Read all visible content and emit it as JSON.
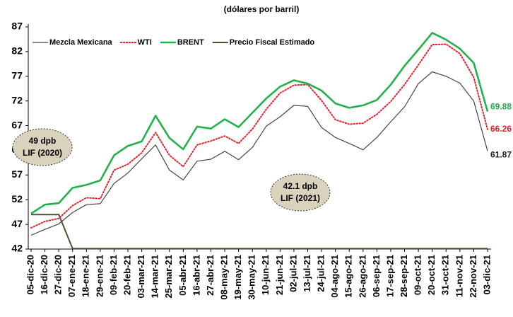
{
  "chart_data": {
    "type": "line",
    "subtitle": "(dólares por barril)",
    "categories": [
      "05-dic-20",
      "16-dic-20",
      "27-dic-20",
      "07-ene-21",
      "18-ene-21",
      "29-ene-21",
      "09-feb-21",
      "20-feb-21",
      "03-mar-21",
      "14-mar-21",
      "25-mar-21",
      "05-abr-21",
      "16-abr-21",
      "27-abr-21",
      "08-may-21",
      "19-may-21",
      "30-may-21",
      "10-jun-21",
      "21-jun-21",
      "02-jul-21",
      "13-jul-21",
      "24-jul-21",
      "04-ago-21",
      "15-ago-21",
      "26-ago-21",
      "06-sep-21",
      "17-sep-21",
      "28-sep-21",
      "09-oct-21",
      "20-oct-21",
      "31-oct-21",
      "11-nov-21",
      "22-nov-21",
      "03-dic-21"
    ],
    "series": [
      {
        "name": "Mezcla Mexicana",
        "color": "#444444",
        "style": "solid",
        "width": 1.2,
        "values": [
          44.8,
          46.0,
          47.1,
          49.4,
          51.0,
          51.2,
          55.3,
          57.4,
          60.3,
          63.1,
          58.0,
          56.0,
          59.8,
          60.2,
          61.8,
          60.1,
          62.6,
          66.9,
          68.8,
          71.1,
          70.9,
          66.6,
          64.6,
          63.4,
          62.1,
          64.6,
          67.8,
          70.8,
          75.5,
          77.9,
          77.0,
          75.6,
          72.0,
          61.87
        ]
      },
      {
        "name": "WTI",
        "color": "#e8202a",
        "style": "dotted",
        "width": 2,
        "values": [
          46.3,
          47.6,
          48.2,
          50.8,
          52.4,
          52.2,
          58.0,
          59.2,
          61.5,
          65.6,
          61.0,
          58.7,
          63.1,
          63.9,
          64.9,
          63.4,
          66.3,
          70.3,
          73.6,
          75.2,
          75.3,
          72.1,
          68.2,
          67.3,
          67.5,
          69.3,
          71.9,
          75.3,
          79.3,
          83.4,
          83.5,
          81.6,
          76.8,
          66.26
        ]
      },
      {
        "name": "BRENT",
        "color": "#22b24c",
        "style": "solid",
        "width": 2.6,
        "values": [
          49.2,
          51.0,
          51.3,
          54.4,
          55.0,
          55.9,
          61.0,
          62.9,
          63.8,
          69.0,
          64.5,
          62.2,
          66.8,
          66.4,
          68.3,
          66.7,
          69.6,
          72.5,
          74.9,
          76.2,
          75.5,
          74.1,
          71.5,
          70.6,
          71.1,
          72.2,
          75.3,
          79.1,
          82.4,
          85.8,
          84.4,
          82.6,
          79.7,
          69.88
        ]
      },
      {
        "name": "Precio Fiscal Estimado",
        "color": "#5a4a32",
        "style": "solid",
        "width": 2,
        "values": [
          49,
          49,
          49,
          42.1,
          42.1,
          42.1,
          42.1,
          42.1,
          42.1,
          42.1,
          42.1,
          42.1,
          42.1,
          42.1,
          42.1,
          42.1,
          42.1,
          42.1,
          42.1,
          42.1,
          42.1,
          42.1,
          42.1,
          42.1,
          42.1,
          42.1,
          42.1,
          42.1,
          42.1,
          42.1,
          42.1,
          42.1,
          42.1,
          42.1
        ]
      }
    ],
    "ylim": [
      42,
      87
    ],
    "yticks": [
      42,
      47,
      52,
      57,
      62,
      67,
      72,
      77,
      82,
      87
    ],
    "annotations": [
      {
        "line1": "49 dpb",
        "line2": "LIF (2020)"
      },
      {
        "line1": "42.1 dpb",
        "line2": "LIF (2021)"
      }
    ]
  }
}
